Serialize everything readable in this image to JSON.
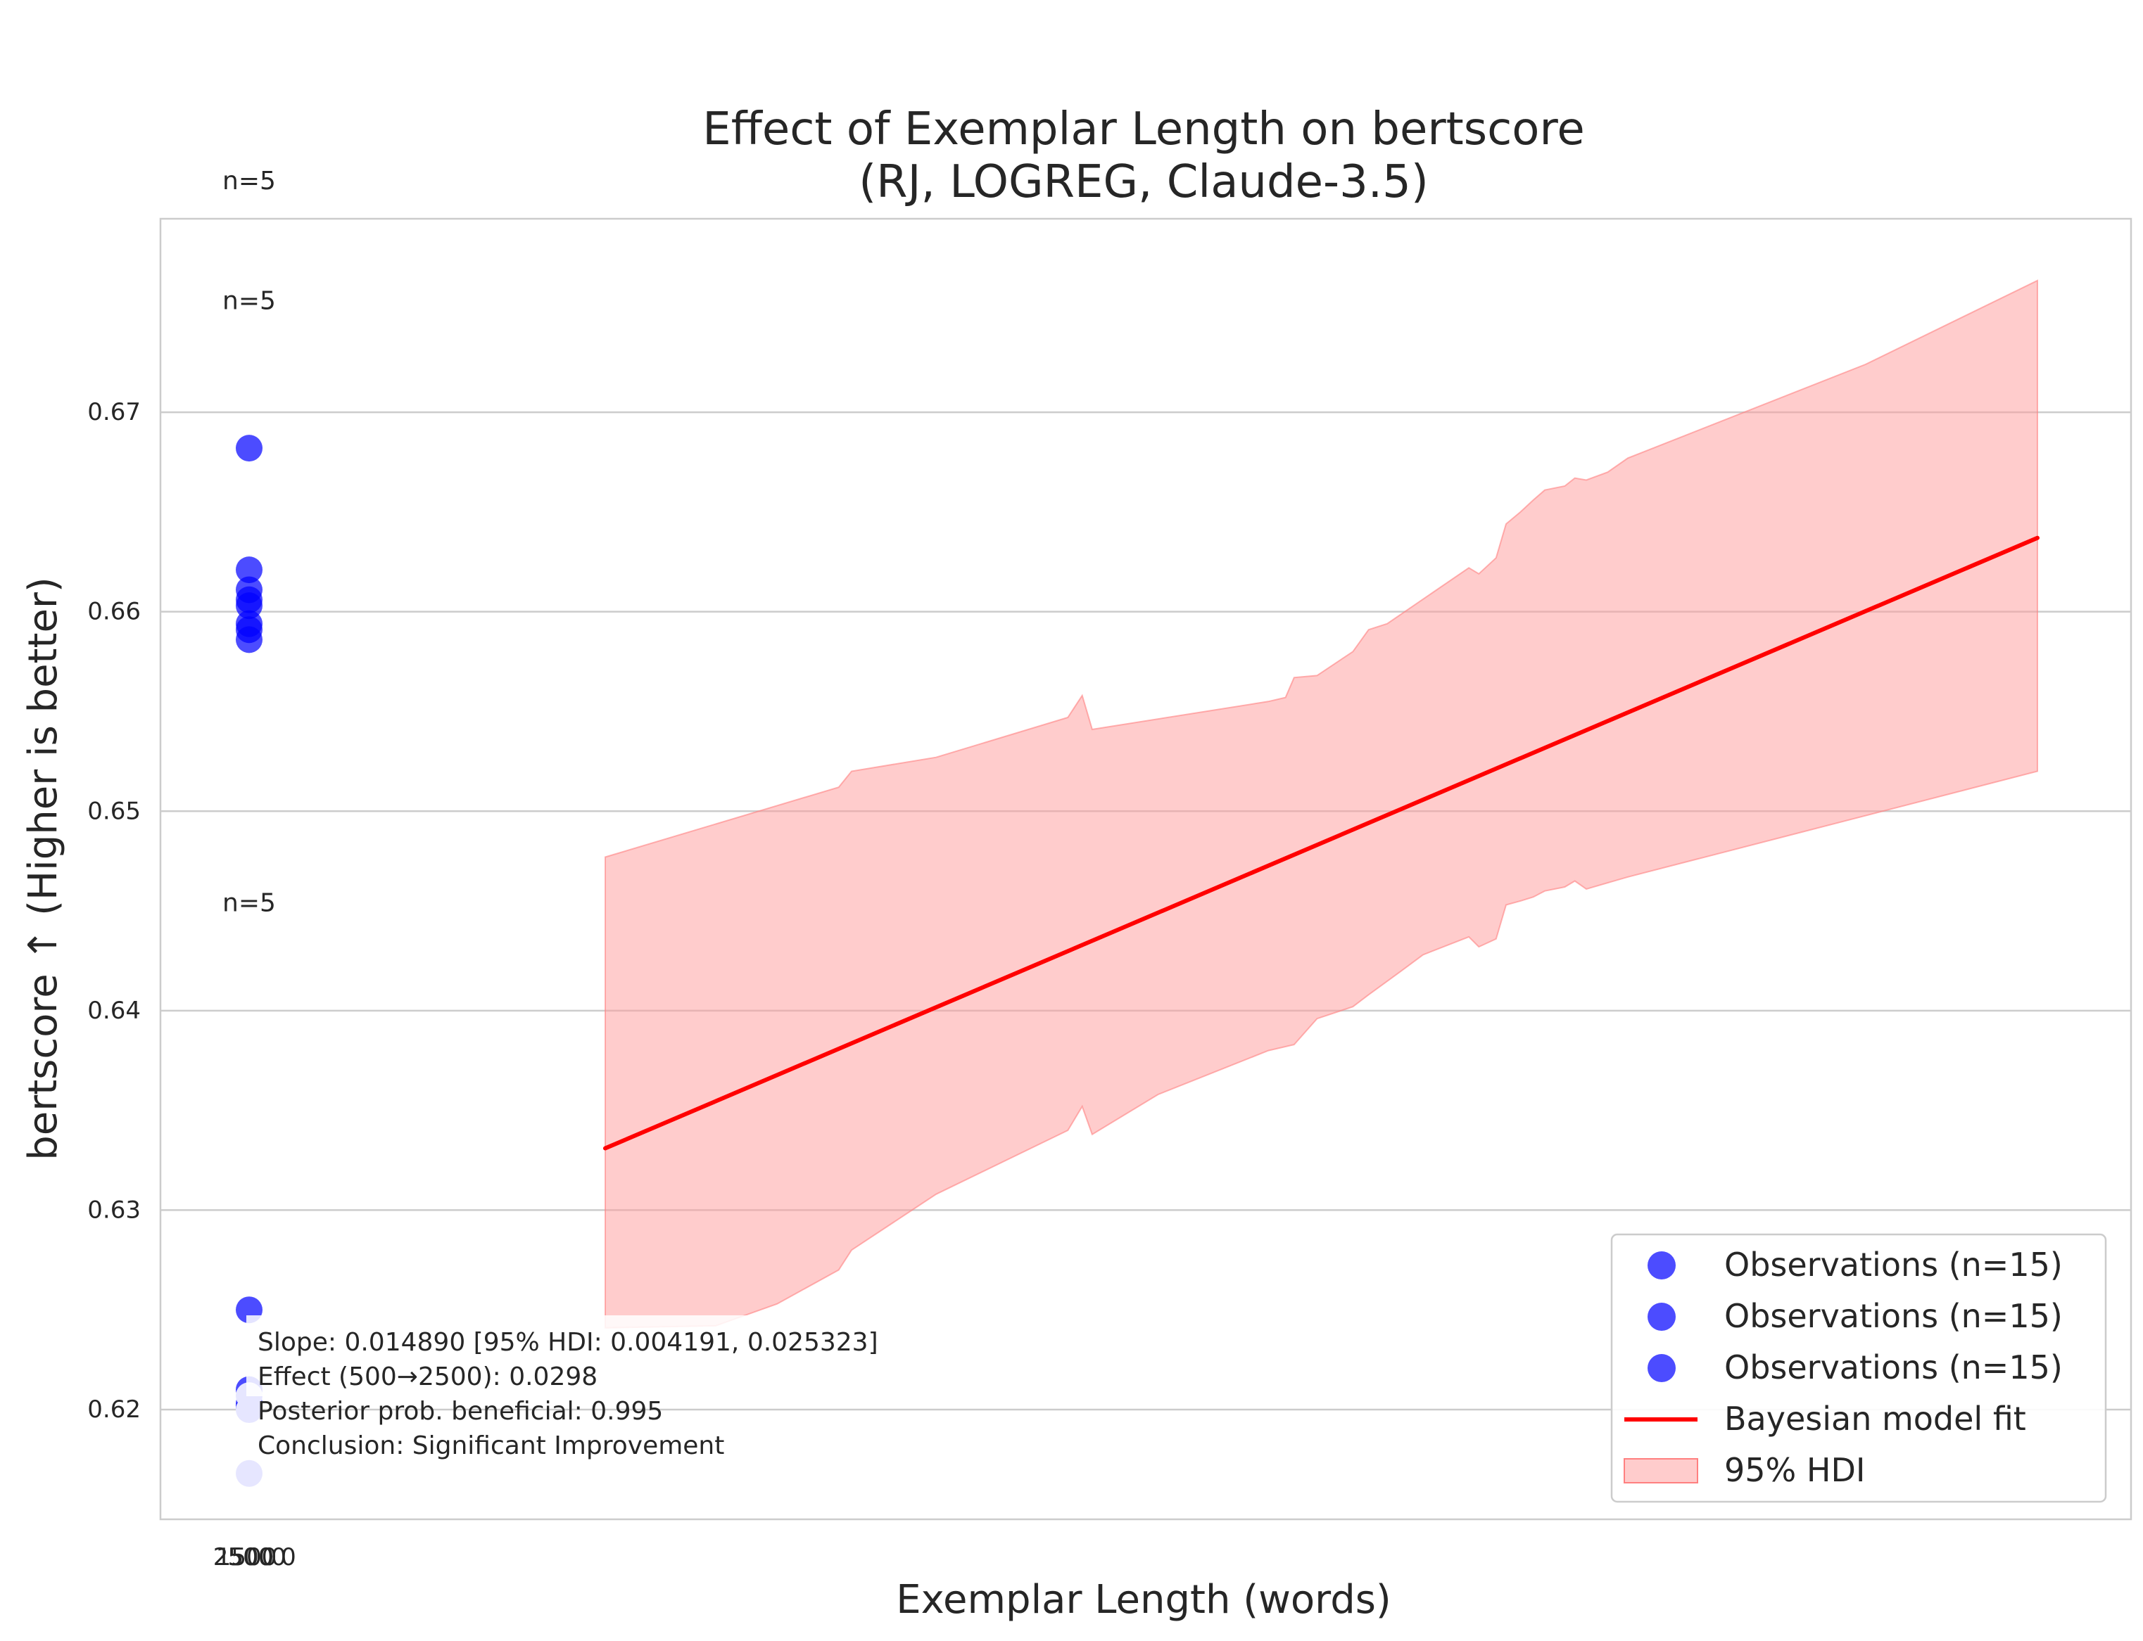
{
  "chart_data": {
    "type": "scatter",
    "title": [
      "Effect of Exemplar Length on bertscore",
      "(RJ, LOGREG, Claude-3.5)"
    ],
    "xlabel": "Exemplar Length (words)",
    "ylabel": "bertscore ↑ (Higher is better)",
    "ylim": [
      0.6145,
      0.6797
    ],
    "grid": "horizontal",
    "x_ticks": [
      "2500",
      "1500",
      "500",
      "0",
      "0"
    ],
    "y_ticks": [
      {
        "value": 0.62,
        "label": "0.62"
      },
      {
        "value": 0.63,
        "label": "0.63"
      },
      {
        "value": 0.64,
        "label": "0.64"
      },
      {
        "value": 0.65,
        "label": "0.65"
      },
      {
        "value": 0.66,
        "label": "0.66"
      },
      {
        "value": 0.67,
        "label": "0.67"
      }
    ],
    "observations": [
      {
        "y": 0.6682,
        "color": "#0000ff",
        "alpha": 0.7
      },
      {
        "y": 0.6621,
        "color": "#0000ff",
        "alpha": 0.7
      },
      {
        "y": 0.6611,
        "color": "#0000ff",
        "alpha": 0.7
      },
      {
        "y": 0.6606,
        "color": "#0000ff",
        "alpha": 0.7
      },
      {
        "y": 0.6603,
        "color": "#0000ff",
        "alpha": 0.7
      },
      {
        "y": 0.6594,
        "color": "#0000ff",
        "alpha": 0.7
      },
      {
        "y": 0.6591,
        "color": "#0000ff",
        "alpha": 0.7
      },
      {
        "y": 0.6586,
        "color": "#0000ff",
        "alpha": 0.7
      },
      {
        "y": 0.625,
        "color": "#0000ff",
        "alpha": 0.7
      },
      {
        "y": 0.621,
        "color": "#0000ff",
        "alpha": 0.7
      },
      {
        "y": 0.6203,
        "color": "#0000ff",
        "alpha": 0.7
      },
      {
        "y": 0.6201,
        "color": "#0000ff",
        "alpha": 0.7
      },
      {
        "y": 0.6207,
        "color": "#e6e6ff",
        "alpha": 1.0
      },
      {
        "y": 0.62,
        "color": "#e6e6ff",
        "alpha": 1.0
      },
      {
        "y": 0.6168,
        "color": "#e6e6ff",
        "alpha": 1.0
      }
    ],
    "count_labels": [
      {
        "text": "n=5",
        "y": 0.6816
      },
      {
        "text": "n=5",
        "y": 0.6756
      },
      {
        "text": "n=5",
        "y": 0.6454
      }
    ],
    "fit_line": {
      "y_start": 0.6331,
      "y_end": 0.6637,
      "color": "#ff0000"
    },
    "hdi_upper": [
      [
        0.0,
        0.6477
      ],
      [
        0.163,
        0.6512
      ],
      [
        0.172,
        0.652
      ],
      [
        0.231,
        0.6527
      ],
      [
        0.323,
        0.6547
      ],
      [
        0.333,
        0.6558
      ],
      [
        0.34,
        0.6541
      ],
      [
        0.463,
        0.6555
      ],
      [
        0.475,
        0.6557
      ],
      [
        0.481,
        0.6567
      ],
      [
        0.497,
        0.6568
      ],
      [
        0.522,
        0.658
      ],
      [
        0.533,
        0.6591
      ],
      [
        0.546,
        0.6594
      ],
      [
        0.603,
        0.6622
      ],
      [
        0.61,
        0.6619
      ],
      [
        0.622,
        0.6627
      ],
      [
        0.629,
        0.6644
      ],
      [
        0.639,
        0.665
      ],
      [
        0.648,
        0.6656
      ],
      [
        0.656,
        0.6661
      ],
      [
        0.67,
        0.6663
      ],
      [
        0.677,
        0.6667
      ],
      [
        0.685,
        0.6666
      ],
      [
        0.7,
        0.667
      ],
      [
        0.714,
        0.6677
      ],
      [
        0.88,
        0.6724
      ],
      [
        1.0,
        0.6766
      ]
    ],
    "hdi_lower": [
      [
        0.0,
        0.6241
      ],
      [
        0.077,
        0.6242
      ],
      [
        0.12,
        0.6253
      ],
      [
        0.163,
        0.627
      ],
      [
        0.172,
        0.628
      ],
      [
        0.231,
        0.6308
      ],
      [
        0.323,
        0.634
      ],
      [
        0.333,
        0.6352
      ],
      [
        0.34,
        0.6338
      ],
      [
        0.386,
        0.6358
      ],
      [
        0.463,
        0.638
      ],
      [
        0.481,
        0.6383
      ],
      [
        0.497,
        0.6396
      ],
      [
        0.522,
        0.6402
      ],
      [
        0.533,
        0.6408
      ],
      [
        0.556,
        0.642
      ],
      [
        0.571,
        0.6428
      ],
      [
        0.603,
        0.6437
      ],
      [
        0.61,
        0.6432
      ],
      [
        0.622,
        0.6436
      ],
      [
        0.629,
        0.6453
      ],
      [
        0.639,
        0.6455
      ],
      [
        0.648,
        0.6457
      ],
      [
        0.656,
        0.646
      ],
      [
        0.67,
        0.6462
      ],
      [
        0.677,
        0.6465
      ],
      [
        0.685,
        0.6461
      ],
      [
        0.714,
        0.6467
      ],
      [
        1.0,
        0.652
      ]
    ],
    "annotation_lines": [
      "Slope: 0.014890 [95% HDI: 0.004191, 0.025323]",
      "Effect (500→2500): 0.0298",
      "Posterior prob. beneficial: 0.995",
      "Conclusion: Significant Improvement"
    ],
    "legend": {
      "placement": "lower-right",
      "entries": [
        {
          "label": "Observations (n=15)",
          "kind": "marker",
          "color": "#0000ff"
        },
        {
          "label": "Observations (n=15)",
          "kind": "marker",
          "color": "#0000ff"
        },
        {
          "label": "Observations (n=15)",
          "kind": "marker",
          "color": "#0000ff"
        },
        {
          "label": "Bayesian model fit",
          "kind": "line",
          "color": "#ff0000"
        },
        {
          "label": "95% HDI",
          "kind": "patch",
          "color": "#ffcccc"
        }
      ]
    },
    "colors": {
      "fit_line": "#ff0000",
      "hdi_fill": "#ff9999",
      "hdi_edge": "#ff8080",
      "grid": "#cccccc",
      "frame": "#cccccc"
    }
  }
}
